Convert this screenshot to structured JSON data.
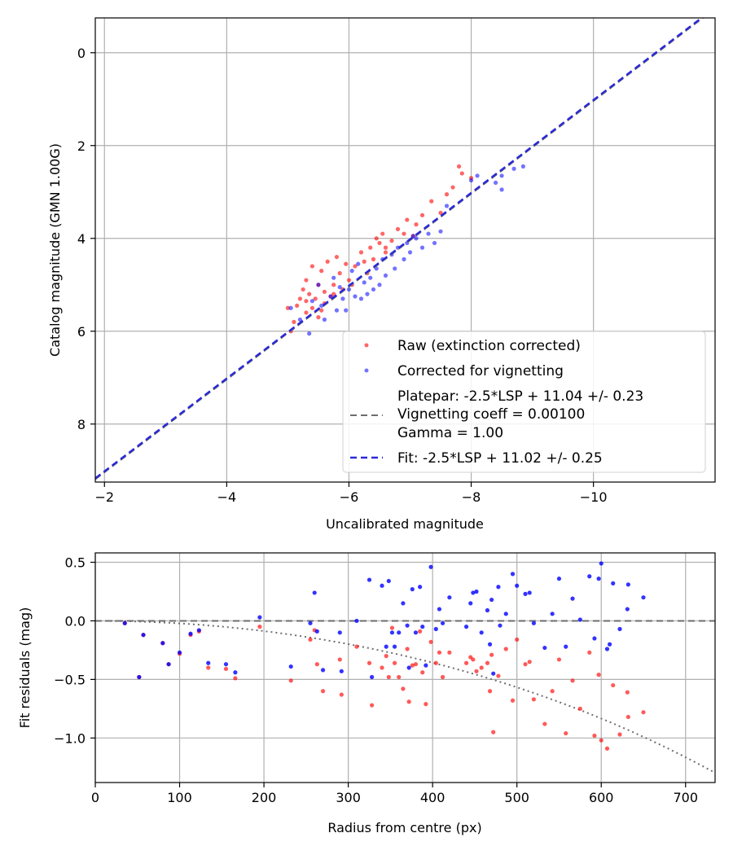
{
  "colors": {
    "raw": "#ff0000",
    "corrected": "#0000ff",
    "platepar_line": "#6e6e6e",
    "fit_line": "#2a2ad8",
    "dotted_curve": "#6e6e6e",
    "grid": "#b0b0b0"
  },
  "chart_data": [
    {
      "type": "scatter",
      "xlabel": "Uncalibrated magnitude",
      "ylabel": "Catalog magnitude (GMN 1.00G)",
      "xlim": [
        -1.85,
        -11.99
      ],
      "ylim": [
        -0.75,
        9.25
      ],
      "xticks": [
        -2,
        -4,
        -6,
        -8,
        -10
      ],
      "xtick_labels": [
        "−2",
        "−4",
        "−6",
        "−8",
        "−10"
      ],
      "yticks": [
        0,
        2,
        4,
        6,
        8
      ],
      "ytick_labels": [
        "0",
        "2",
        "4",
        "6",
        "8"
      ],
      "grid": true,
      "legend_position": "lower-right",
      "legend": {
        "raw": "Raw (extinction corrected)",
        "corrected": "Corrected for vignetting",
        "platepar_lines": [
          "Platepar: -2.5*LSP + 11.04 +/- 0.23",
          "Vignetting coeff = 0.00100",
          "Gamma = 1.00"
        ],
        "fit": "Fit: -2.5*LSP + 11.02 +/- 0.25"
      },
      "platepar_line": {
        "slope": 1.0,
        "intercept": 11.04
      },
      "fit_line": {
        "slope": 1.0,
        "intercept": 11.02
      },
      "series": [
        {
          "name": "Raw (extinction corrected)",
          "points": [
            [
              -5.0,
              5.5
            ],
            [
              -5.05,
              6.0
            ],
            [
              -5.1,
              5.8
            ],
            [
              -5.15,
              5.45
            ],
            [
              -5.2,
              5.3
            ],
            [
              -5.25,
              5.1
            ],
            [
              -5.3,
              5.6
            ],
            [
              -5.3,
              4.9
            ],
            [
              -5.35,
              5.2
            ],
            [
              -5.4,
              5.5
            ],
            [
              -5.4,
              4.6
            ],
            [
              -5.45,
              5.3
            ],
            [
              -5.5,
              5.0
            ],
            [
              -5.5,
              5.7
            ],
            [
              -5.55,
              4.7
            ],
            [
              -5.6,
              5.15
            ],
            [
              -5.6,
              5.4
            ],
            [
              -5.65,
              4.5
            ],
            [
              -5.7,
              5.25
            ],
            [
              -5.75,
              5.0
            ],
            [
              -5.8,
              4.4
            ],
            [
              -5.85,
              4.75
            ],
            [
              -5.9,
              5.1
            ],
            [
              -5.95,
              4.55
            ],
            [
              -6.0,
              4.9
            ],
            [
              -6.05,
              5.0
            ],
            [
              -6.1,
              4.6
            ],
            [
              -6.2,
              4.3
            ],
            [
              -6.3,
              4.75
            ],
            [
              -6.35,
              4.2
            ],
            [
              -6.4,
              4.45
            ],
            [
              -6.45,
              4.0
            ],
            [
              -6.5,
              4.1
            ],
            [
              -6.55,
              3.9
            ],
            [
              -6.6,
              4.3
            ],
            [
              -6.7,
              4.05
            ],
            [
              -6.8,
              3.8
            ],
            [
              -6.9,
              3.9
            ],
            [
              -6.95,
              3.6
            ],
            [
              -7.05,
              3.95
            ],
            [
              -7.1,
              3.7
            ],
            [
              -7.2,
              3.5
            ],
            [
              -7.35,
              3.2
            ],
            [
              -7.5,
              3.45
            ],
            [
              -7.6,
              3.05
            ],
            [
              -7.7,
              2.9
            ],
            [
              -7.85,
              2.6
            ],
            [
              -8.0,
              2.7
            ],
            [
              -7.8,
              2.45
            ],
            [
              -5.3,
              5.35
            ],
            [
              -5.55,
              5.55
            ],
            [
              -5.75,
              5.2
            ],
            [
              -6.25,
              4.5
            ],
            [
              -6.6,
              4.2
            ]
          ]
        },
        {
          "name": "Corrected for vignetting",
          "points": [
            [
              -5.05,
              5.5
            ],
            [
              -5.2,
              5.75
            ],
            [
              -5.35,
              6.05
            ],
            [
              -5.4,
              5.35
            ],
            [
              -5.5,
              5.0
            ],
            [
              -5.55,
              5.45
            ],
            [
              -5.6,
              5.75
            ],
            [
              -5.7,
              5.25
            ],
            [
              -5.75,
              4.85
            ],
            [
              -5.8,
              5.55
            ],
            [
              -5.85,
              5.05
            ],
            [
              -5.9,
              5.3
            ],
            [
              -6.0,
              5.1
            ],
            [
              -6.05,
              4.7
            ],
            [
              -6.1,
              5.25
            ],
            [
              -6.15,
              4.55
            ],
            [
              -6.25,
              4.95
            ],
            [
              -6.3,
              5.2
            ],
            [
              -6.35,
              4.85
            ],
            [
              -6.45,
              4.65
            ],
            [
              -6.5,
              5.0
            ],
            [
              -6.55,
              4.45
            ],
            [
              -6.6,
              4.8
            ],
            [
              -6.7,
              4.35
            ],
            [
              -6.75,
              4.65
            ],
            [
              -6.8,
              4.2
            ],
            [
              -6.9,
              4.45
            ],
            [
              -6.95,
              4.1
            ],
            [
              -7.0,
              4.3
            ],
            [
              -7.1,
              4.0
            ],
            [
              -7.2,
              4.2
            ],
            [
              -7.3,
              3.9
            ],
            [
              -7.4,
              4.1
            ],
            [
              -7.5,
              3.85
            ],
            [
              -7.6,
              3.3
            ],
            [
              -8.0,
              2.75
            ],
            [
              -8.1,
              2.65
            ],
            [
              -8.4,
              2.8
            ],
            [
              -8.5,
              2.95
            ],
            [
              -8.7,
              2.5
            ],
            [
              -8.85,
              2.45
            ],
            [
              -8.5,
              2.65
            ],
            [
              -6.2,
              5.3
            ],
            [
              -6.4,
              5.1
            ],
            [
              -5.95,
              5.55
            ],
            [
              -7.05,
              3.95
            ]
          ]
        }
      ]
    },
    {
      "type": "scatter",
      "xlabel": "Radius from centre (px)",
      "ylabel": "Fit residuals (mag)",
      "xlim": [
        0,
        735
      ],
      "ylim": [
        -1.38,
        0.58
      ],
      "xticks": [
        0,
        100,
        200,
        300,
        400,
        500,
        600,
        700
      ],
      "xtick_labels": [
        "0",
        "100",
        "200",
        "300",
        "400",
        "500",
        "600",
        "700"
      ],
      "yticks": [
        0.5,
        0.0,
        -0.5,
        -1.0
      ],
      "ytick_labels": [
        "0.5",
        "0.0",
        "−0.5",
        "−1.0"
      ],
      "grid": true,
      "zero_line": 0.0,
      "vignetting_coeff": 0.001,
      "series": [
        {
          "name": "Raw",
          "points": [
            [
              35,
              -0.02
            ],
            [
              52,
              -0.48
            ],
            [
              57,
              -0.12
            ],
            [
              80,
              -0.19
            ],
            [
              87,
              -0.37
            ],
            [
              100,
              -0.28
            ],
            [
              113,
              -0.12
            ],
            [
              123,
              -0.09
            ],
            [
              134,
              -0.4
            ],
            [
              155,
              -0.41
            ],
            [
              166,
              -0.49
            ],
            [
              195,
              -0.05
            ],
            [
              232,
              -0.51
            ],
            [
              255,
              -0.16
            ],
            [
              260,
              -0.08
            ],
            [
              263,
              -0.37
            ],
            [
              270,
              -0.6
            ],
            [
              290,
              -0.33
            ],
            [
              292,
              -0.63
            ],
            [
              310,
              -0.22
            ],
            [
              325,
              -0.36
            ],
            [
              328,
              -0.72
            ],
            [
              340,
              -0.4
            ],
            [
              345,
              -0.3
            ],
            [
              348,
              -0.48
            ],
            [
              352,
              -0.06
            ],
            [
              355,
              -0.36
            ],
            [
              360,
              -0.48
            ],
            [
              365,
              -0.58
            ],
            [
              370,
              -0.24
            ],
            [
              372,
              -0.69
            ],
            [
              376,
              -0.38
            ],
            [
              380,
              -0.37
            ],
            [
              385,
              -0.09
            ],
            [
              388,
              -0.44
            ],
            [
              392,
              -0.71
            ],
            [
              398,
              -0.18
            ],
            [
              404,
              -0.36
            ],
            [
              408,
              -0.27
            ],
            [
              412,
              -0.48
            ],
            [
              420,
              -0.27
            ],
            [
              440,
              -0.36
            ],
            [
              445,
              -0.31
            ],
            [
              448,
              -0.33
            ],
            [
              452,
              -0.43
            ],
            [
              458,
              -0.4
            ],
            [
              465,
              -0.36
            ],
            [
              468,
              -0.6
            ],
            [
              470,
              -0.29
            ],
            [
              472,
              -0.95
            ],
            [
              478,
              -0.47
            ],
            [
              487,
              -0.24
            ],
            [
              495,
              -0.68
            ],
            [
              500,
              -0.16
            ],
            [
              510,
              -0.37
            ],
            [
              515,
              -0.35
            ],
            [
              520,
              -0.67
            ],
            [
              533,
              -0.88
            ],
            [
              542,
              -0.6
            ],
            [
              550,
              -0.33
            ],
            [
              558,
              -0.96
            ],
            [
              566,
              -0.51
            ],
            [
              575,
              -0.75
            ],
            [
              586,
              -0.27
            ],
            [
              592,
              -0.98
            ],
            [
              597,
              -0.46
            ],
            [
              600,
              -1.02
            ],
            [
              607,
              -1.09
            ],
            [
              614,
              -0.55
            ],
            [
              622,
              -0.97
            ],
            [
              631,
              -0.61
            ],
            [
              632,
              -0.82
            ],
            [
              650,
              -0.78
            ]
          ]
        },
        {
          "name": "Corrected",
          "points": [
            [
              35,
              -0.02
            ],
            [
              52,
              -0.48
            ],
            [
              57,
              -0.12
            ],
            [
              80,
              -0.19
            ],
            [
              87,
              -0.37
            ],
            [
              100,
              -0.27
            ],
            [
              113,
              -0.11
            ],
            [
              123,
              -0.08
            ],
            [
              134,
              -0.36
            ],
            [
              155,
              -0.37
            ],
            [
              166,
              -0.44
            ],
            [
              195,
              0.03
            ],
            [
              232,
              -0.39
            ],
            [
              255,
              -0.02
            ],
            [
              260,
              0.24
            ],
            [
              263,
              -0.09
            ],
            [
              270,
              -0.42
            ],
            [
              290,
              -0.1
            ],
            [
              292,
              -0.43
            ],
            [
              310,
              0.0
            ],
            [
              325,
              0.35
            ],
            [
              328,
              -0.48
            ],
            [
              340,
              0.3
            ],
            [
              345,
              -0.22
            ],
            [
              348,
              0.34
            ],
            [
              352,
              -0.1
            ],
            [
              355,
              -0.22
            ],
            [
              360,
              -0.1
            ],
            [
              365,
              0.15
            ],
            [
              370,
              -0.04
            ],
            [
              372,
              -0.4
            ],
            [
              376,
              0.27
            ],
            [
              380,
              -0.1
            ],
            [
              385,
              0.29
            ],
            [
              388,
              -0.05
            ],
            [
              392,
              -0.38
            ],
            [
              398,
              0.46
            ],
            [
              404,
              -0.07
            ],
            [
              408,
              0.1
            ],
            [
              412,
              -0.02
            ],
            [
              420,
              0.2
            ],
            [
              440,
              -0.05
            ],
            [
              445,
              0.15
            ],
            [
              448,
              0.24
            ],
            [
              452,
              0.25
            ],
            [
              458,
              -0.1
            ],
            [
              465,
              0.09
            ],
            [
              468,
              -0.2
            ],
            [
              470,
              0.18
            ],
            [
              472,
              -0.45
            ],
            [
              478,
              0.29
            ],
            [
              487,
              0.06
            ],
            [
              495,
              0.4
            ],
            [
              500,
              0.3
            ],
            [
              510,
              0.23
            ],
            [
              515,
              0.24
            ],
            [
              520,
              -0.02
            ],
            [
              533,
              -0.23
            ],
            [
              542,
              0.06
            ],
            [
              550,
              0.36
            ],
            [
              558,
              -0.22
            ],
            [
              566,
              0.19
            ],
            [
              575,
              0.01
            ],
            [
              586,
              0.38
            ],
            [
              592,
              -0.15
            ],
            [
              597,
              0.36
            ],
            [
              600,
              0.49
            ],
            [
              607,
              -0.24
            ],
            [
              614,
              0.32
            ],
            [
              622,
              -0.07
            ],
            [
              631,
              0.1
            ],
            [
              632,
              0.31
            ],
            [
              650,
              0.2
            ],
            [
              610,
              -0.2
            ],
            [
              480,
              -0.04
            ]
          ]
        }
      ]
    }
  ]
}
